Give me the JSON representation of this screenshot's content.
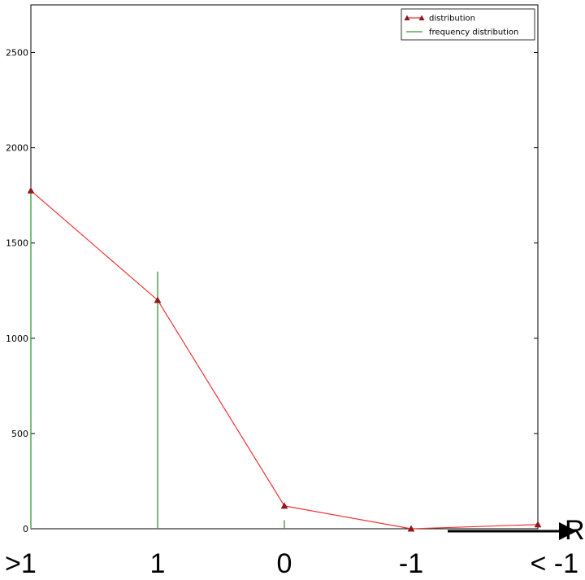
{
  "chart_data": {
    "type": "line",
    "categories": [
      ">1",
      "1",
      "0",
      "-1",
      "< -1"
    ],
    "ylim": [
      0,
      2750
    ],
    "yticks": [
      0,
      500,
      1000,
      1500,
      2000,
      2500
    ],
    "xlabel": "R",
    "ylabel": "",
    "title": "",
    "grid": false,
    "legend_position": "top-right",
    "series": [
      {
        "name": "distribution",
        "type": "line",
        "marker": "triangle",
        "color": "#ee3333",
        "marker_color": "#8b1a1a",
        "values": [
          1775,
          1200,
          120,
          0,
          22
        ]
      },
      {
        "name": "frequency distribution",
        "type": "stem",
        "color": "#339933",
        "values": [
          1775,
          1350,
          45,
          0,
          0
        ]
      }
    ]
  }
}
